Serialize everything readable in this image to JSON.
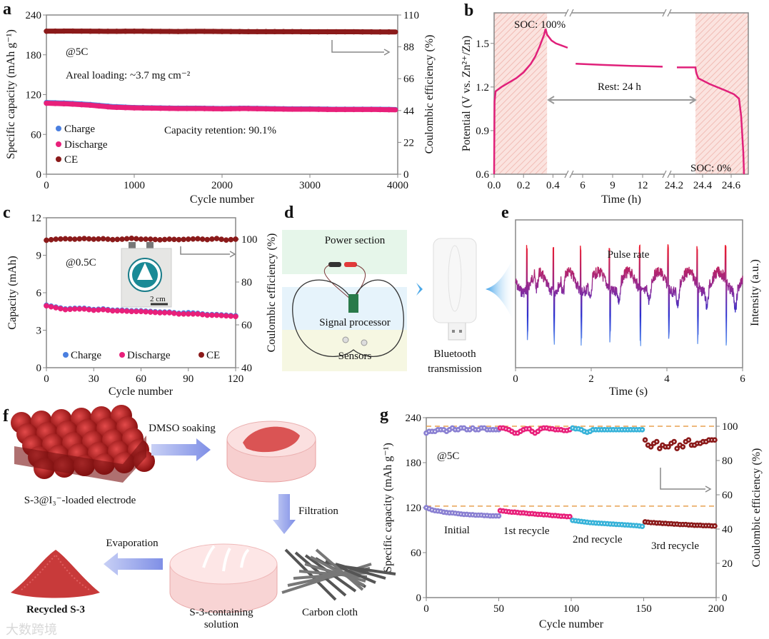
{
  "panels": {
    "a": "a",
    "b": "b",
    "c": "c",
    "d": "d",
    "e": "e",
    "f": "f",
    "g": "g"
  },
  "watermark": "大数跨境",
  "colors": {
    "charge": "#4a7fe0",
    "discharge": "#e8207a",
    "ce": "#8b1a1a",
    "g_initial": "#8a80d2",
    "g_first": "#e8207a",
    "g_second": "#38b3d9",
    "g_third": "#8b1a1a",
    "dashed": "#e8a050",
    "hatch": "#f2b7b0"
  },
  "a": {
    "rate": "@5C",
    "loading": "Areal loading: ~3.7 mg cm⁻²",
    "retention": "Capacity retention: 90.1%",
    "legend": [
      "Charge",
      "Discharge",
      "CE"
    ]
  },
  "b": {
    "soc100": "SOC: 100%",
    "rest": "Rest: 24 h",
    "soc0": "SOC: 0%"
  },
  "c": {
    "rate": "@0.5C",
    "scale": "2 cm",
    "legend": [
      "Charge",
      "Discharge",
      "CE"
    ]
  },
  "d": {
    "power": "Power section",
    "signal": "Signal processor",
    "sensors": "Sensors",
    "bt1": "Bluetooth",
    "bt2": "transmission"
  },
  "e": {
    "label": "Pulse rate"
  },
  "f": {
    "dmso": "DMSO soaking",
    "electrode": "S-3@I₃⁻-loaded electrode",
    "filtration": "Filtration",
    "evaporation": "Evaporation",
    "recycled": "Recycled S-3",
    "solution1": "S-3-containing",
    "solution2": "solution",
    "cloth": "Carbon cloth"
  },
  "g": {
    "rate": "@5C",
    "segments": [
      "Initial",
      "1st recycle",
      "2nd recycle",
      "3rd recycle"
    ]
  },
  "chart_data": [
    {
      "id": "a",
      "type": "scatter",
      "xlabel": "Cycle number",
      "ylabel": "Specific capacity (mAh g⁻¹)",
      "y2label": "Coulombic efficiency (%)",
      "xlim": [
        0,
        4000
      ],
      "ylim": [
        0,
        240
      ],
      "y2lim": [
        0,
        110
      ],
      "xticks": [
        "0",
        "1000",
        "2000",
        "3000",
        "4000"
      ],
      "yticks": [
        "0",
        "60",
        "120",
        "180",
        "240"
      ],
      "y2ticks": [
        "0",
        "22",
        "44",
        "66",
        "88",
        "110"
      ],
      "x_start": 0,
      "x_step": 250,
      "series": [
        {
          "name": "Charge",
          "axis": "left",
          "values": [
            108,
            107,
            105,
            102,
            100.5,
            100,
            99.5,
            99.5,
            99,
            99.5,
            99,
            98.5,
            98.5,
            98,
            98,
            98,
            97.5
          ]
        },
        {
          "name": "Discharge",
          "axis": "left",
          "values": [
            107,
            106,
            104,
            101,
            100,
            99.5,
            99,
            99,
            98.5,
            99,
            98.5,
            98,
            98,
            97.5,
            97.5,
            97.5,
            97
          ]
        },
        {
          "name": "CE",
          "axis": "right",
          "values": [
            98.8,
            98.9,
            98.8,
            98.7,
            98.8,
            98.7,
            98.6,
            98.7,
            98.6,
            98.5,
            98.5,
            98.5,
            98.4,
            98.4,
            98.4,
            98.3,
            98.3
          ]
        }
      ]
    },
    {
      "id": "b",
      "type": "line",
      "xlabel": "Time (h)",
      "ylabel": "Potential (V vs. Zn²⁺/Zn)",
      "ylim": [
        0.6,
        1.71
      ],
      "yticks": [
        "0.6",
        "0.9",
        "1.2",
        "1.5"
      ],
      "xticks": [
        "0.0",
        "0.2",
        "0.4",
        "6",
        "9",
        "12",
        "24.2",
        "24.4",
        "24.6"
      ],
      "shaded": [
        [
          0,
          0.36
        ],
        [
          24.35,
          24.72
        ]
      ],
      "segments": [
        {
          "x": [
            0,
            0.003,
            0.01,
            0.05,
            0.1,
            0.15,
            0.2,
            0.25,
            0.28,
            0.31,
            0.34,
            0.35,
            0.36,
            0.39,
            0.42,
            0.46,
            0.5
          ],
          "y": [
            0.6,
            1.1,
            1.17,
            1.2,
            1.23,
            1.26,
            1.3,
            1.36,
            1.41,
            1.48,
            1.56,
            1.6,
            1.56,
            1.52,
            1.5,
            1.485,
            1.47
          ]
        },
        {
          "x": [
            5.3,
            8,
            11,
            14
          ],
          "y": [
            1.36,
            1.352,
            1.345,
            1.34
          ]
        },
        {
          "x": [
            24.22,
            24.35,
            24.355,
            24.37,
            24.45,
            24.55,
            24.62,
            24.655,
            24.67,
            24.685,
            24.69
          ],
          "y": [
            1.335,
            1.335,
            1.3,
            1.26,
            1.22,
            1.18,
            1.15,
            1.12,
            1.0,
            0.75,
            0.6
          ]
        }
      ]
    },
    {
      "id": "c",
      "type": "scatter",
      "xlabel": "Cycle number",
      "ylabel": "Capacity (mAh)",
      "y2label": "Coulombic efficiency (%)",
      "xlim": [
        0,
        120
      ],
      "ylim": [
        0,
        12
      ],
      "y2lim": [
        40,
        110
      ],
      "xticks": [
        "0",
        "30",
        "60",
        "90",
        "120"
      ],
      "yticks": [
        "0",
        "3",
        "6",
        "9",
        "12"
      ],
      "y2ticks": [
        "40",
        "60",
        "80",
        "100"
      ],
      "x_start": 0,
      "x_step": 6,
      "series": [
        {
          "name": "Charge",
          "axis": "left",
          "values": [
            5.0,
            4.85,
            4.7,
            4.75,
            4.75,
            4.65,
            4.7,
            4.6,
            4.6,
            4.55,
            4.55,
            4.5,
            4.45,
            4.45,
            4.35,
            4.4,
            4.35,
            4.25,
            4.25,
            4.2,
            4.15
          ]
        },
        {
          "name": "Discharge",
          "axis": "left",
          "values": [
            4.95,
            4.8,
            4.65,
            4.7,
            4.7,
            4.6,
            4.65,
            4.55,
            4.55,
            4.5,
            4.5,
            4.45,
            4.4,
            4.4,
            4.3,
            4.3,
            4.3,
            4.2,
            4.2,
            4.15,
            4.1
          ]
        },
        {
          "name": "CE",
          "axis": "right",
          "values": [
            99.5,
            100,
            100.2,
            100,
            100.3,
            100,
            100.2,
            99.8,
            100,
            100.4,
            100,
            100,
            99.7,
            100,
            99.8,
            100,
            100.2,
            99.8,
            100.3,
            99.6,
            100
          ]
        }
      ]
    },
    {
      "id": "e",
      "type": "line",
      "xlabel": "Time (s)",
      "ylabel": "Intensity (a.u.)",
      "xlim": [
        0,
        6
      ],
      "xticks": [
        "0",
        "2",
        "4",
        "6"
      ],
      "peak_times": [
        0.3,
        1.0,
        1.72,
        2.48,
        3.28,
        4.03,
        4.8,
        5.55
      ]
    },
    {
      "id": "g",
      "type": "scatter",
      "xlabel": "Cycle number",
      "ylabel": "Specific capacity (mAh g⁻¹)",
      "y2label": "Coulombic efficiency (%)",
      "xlim": [
        0,
        200
      ],
      "ylim": [
        0,
        240
      ],
      "y2lim": [
        0,
        105
      ],
      "xticks": [
        "0",
        "50",
        "100",
        "150",
        "200"
      ],
      "yticks": [
        "0",
        "60",
        "120",
        "180",
        "240"
      ],
      "y2ticks": [
        "0",
        "20",
        "40",
        "60",
        "80",
        "100"
      ],
      "reference_lines": {
        "capacity": 122,
        "ce": 100
      },
      "series": [
        {
          "name": "Initial",
          "x_start": 0,
          "x_step": 2,
          "capacity": [
            120,
            118.5,
            117,
            116,
            115.5,
            115,
            114,
            113.5,
            113,
            113,
            112.5,
            112,
            111.5,
            111,
            111,
            110.5,
            110.5,
            110,
            110,
            110,
            109.5,
            109.5,
            109,
            109,
            109,
            109
          ],
          "ce": [
            96,
            97,
            97,
            97,
            98,
            98,
            98,
            97,
            98,
            99,
            98,
            98,
            99,
            99,
            98,
            98,
            99,
            98,
            98,
            99,
            99,
            98,
            98,
            98,
            98,
            98
          ]
        },
        {
          "name": "1st recycle",
          "x_start": 51,
          "x_step": 2,
          "capacity": [
            116,
            115.5,
            115,
            114.5,
            114,
            114,
            113.5,
            113,
            113,
            112.5,
            112,
            112,
            111.5,
            111,
            111,
            110.5,
            110.5,
            110,
            109.5,
            109.5,
            109,
            108.5,
            108.5,
            108,
            108
          ],
          "ce": [
            99,
            99,
            98.5,
            98,
            97,
            96,
            96,
            97,
            98,
            98.5,
            98.5,
            97,
            96,
            97,
            98.5,
            99,
            99,
            98.5,
            98.5,
            98,
            98,
            98,
            97.5,
            97.5,
            98
          ]
        },
        {
          "name": "2nd recycle",
          "x_start": 101,
          "x_step": 2,
          "capacity": [
            103,
            102.5,
            102,
            101.5,
            101,
            100.5,
            100,
            99.8,
            99.5,
            99.2,
            99,
            98.8,
            98.5,
            98.2,
            98,
            97.7,
            97.5,
            97.3,
            97,
            96.8,
            96.5,
            96.2,
            96,
            95.5,
            95
          ],
          "ce": [
            99,
            98.5,
            98.5,
            98,
            97,
            96.5,
            97,
            98,
            98,
            98,
            98,
            98,
            98,
            98,
            98,
            98,
            98,
            98,
            98,
            98,
            98,
            98,
            98,
            98,
            98
          ]
        },
        {
          "name": "3rd recycle",
          "x_start": 151,
          "x_step": 2,
          "capacity": [
            101,
            100.5,
            100,
            100,
            99.5,
            99.5,
            99,
            99,
            98.5,
            98.5,
            98,
            98,
            97.5,
            97.5,
            97.5,
            97,
            97,
            96.5,
            96.5,
            96.5,
            96,
            96,
            96,
            95.5,
            95.5
          ],
          "ce": [
            92,
            89,
            88,
            90,
            91,
            87,
            89,
            88,
            88,
            90,
            91,
            87,
            89,
            88,
            91,
            92,
            89,
            89,
            90,
            90,
            91,
            91,
            92,
            92,
            92
          ]
        }
      ]
    }
  ]
}
